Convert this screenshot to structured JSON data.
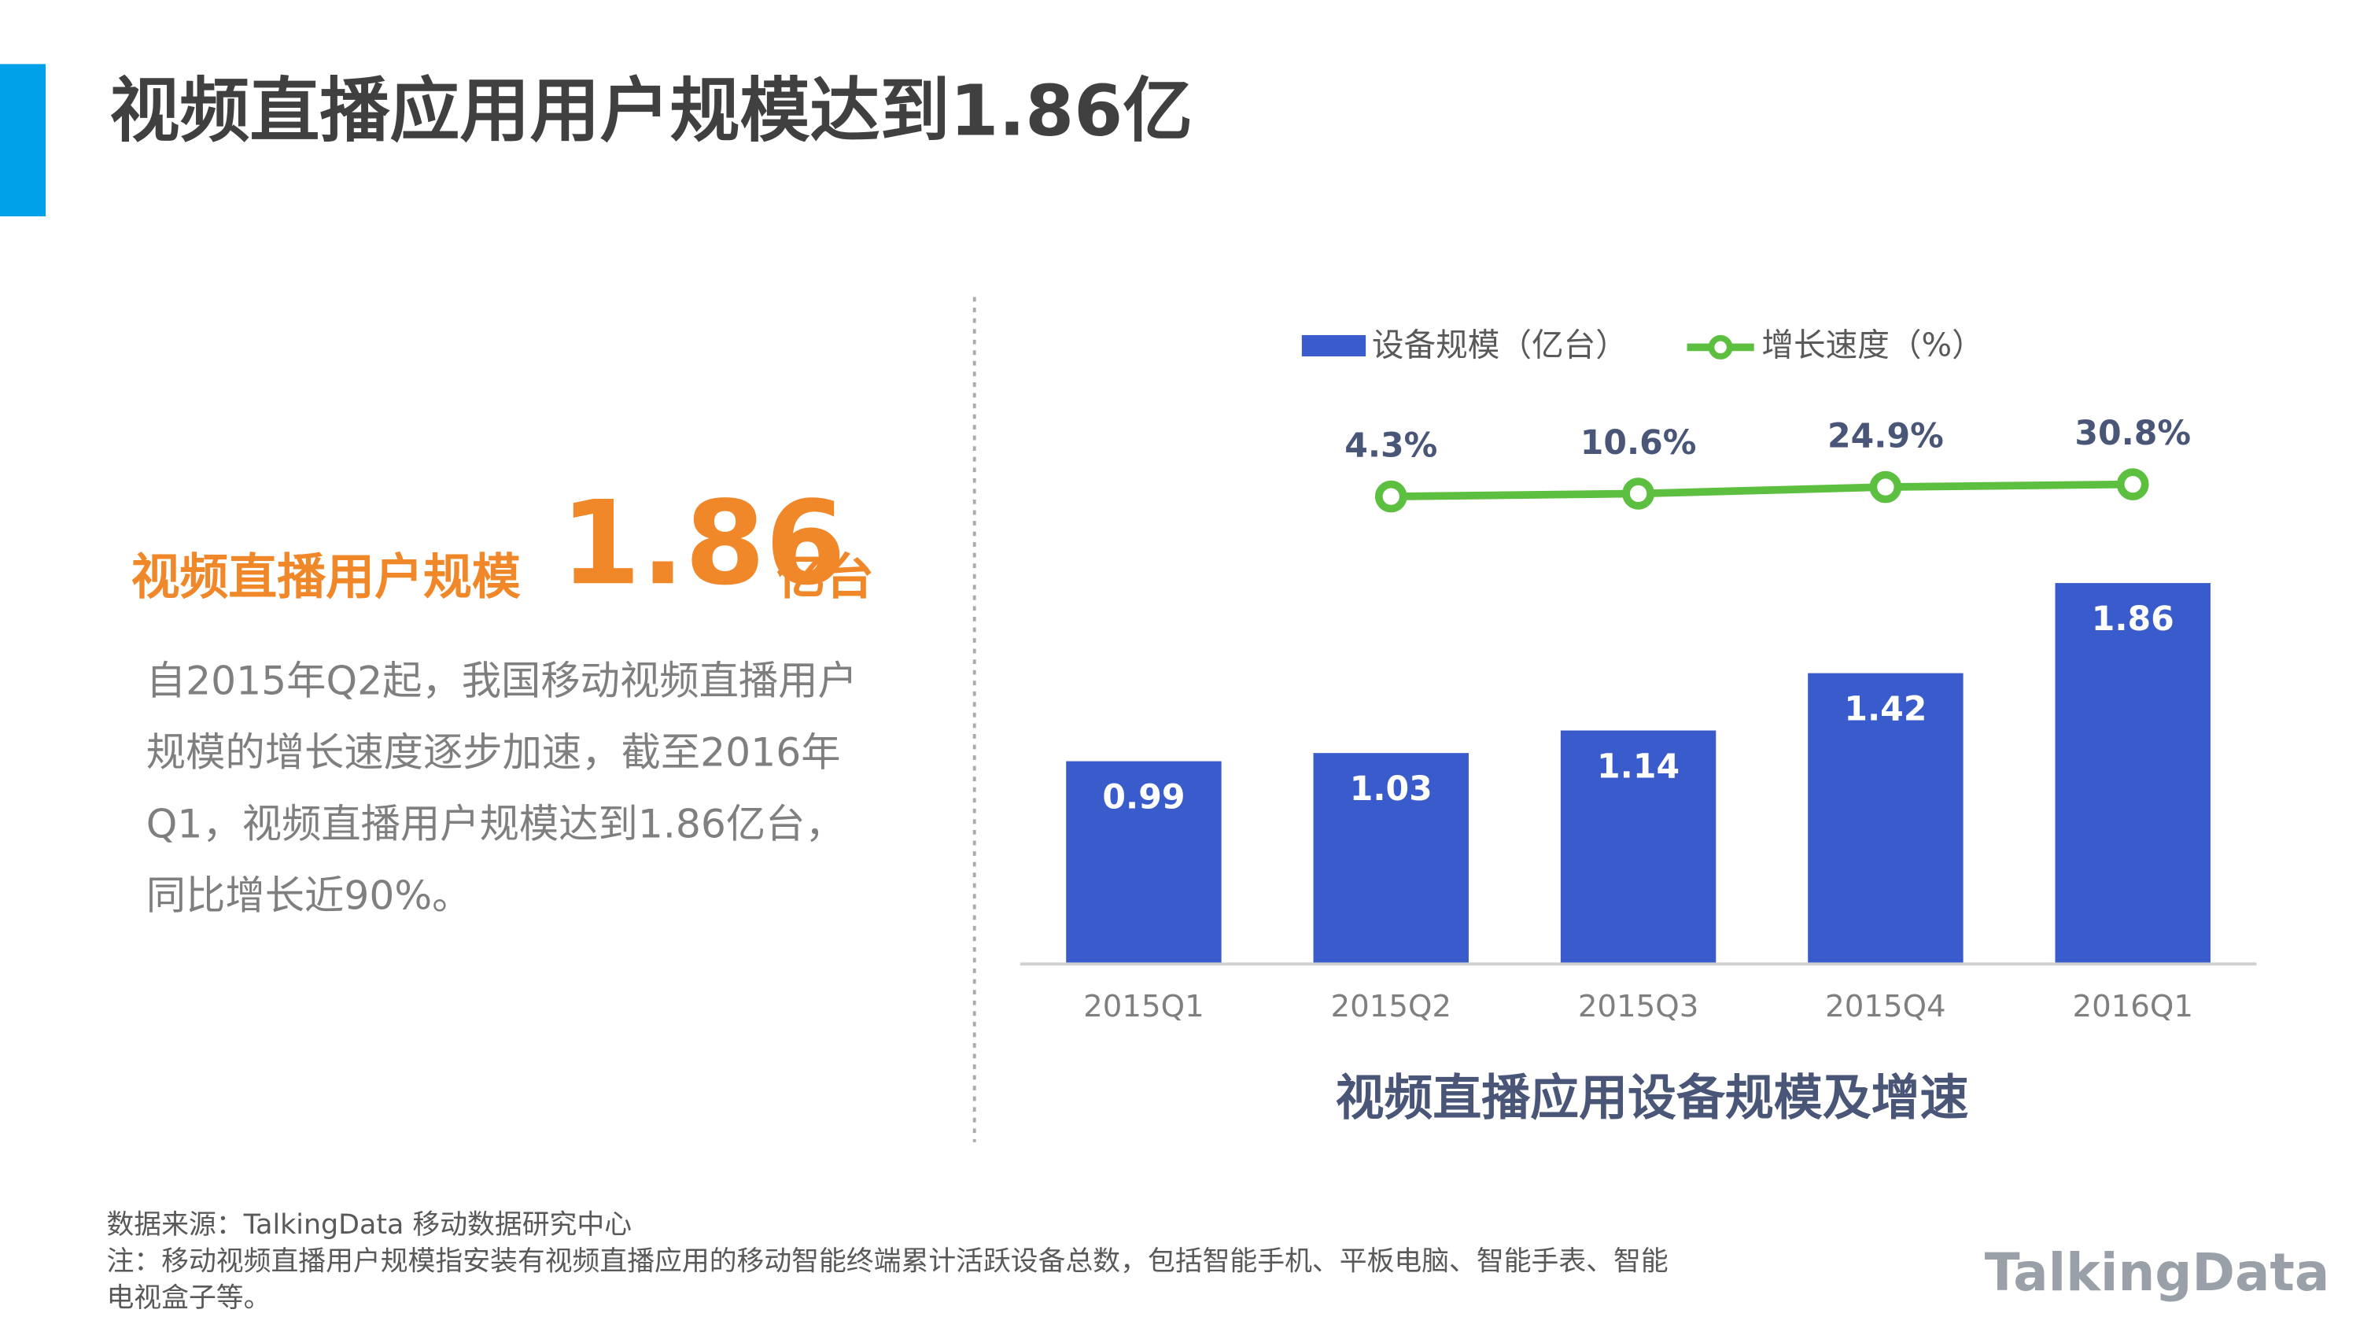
{
  "header": {
    "title": "视频直播应用用户规模达到1.86亿"
  },
  "highlight": {
    "prefix": "视频直播用户规模",
    "number": "1.86",
    "unit": "亿台"
  },
  "description": [
    "自2015年Q2起，我国移动视频直播用户",
    "规模的增长速度逐步加速，截至2016年",
    "Q1，视频直播用户规模达到1.86亿台，",
    "同比增长近90%。"
  ],
  "footnotes": [
    "数据来源：TalkingData 移动数据研究中心",
    "注：移动视频直播用户规模指安装有视频直播应用的移动智能终端累计活跃设备总数，包括智能手机、平板电脑、智能手表、智能",
    "电视盒子等。"
  ],
  "logo": "TalkingData",
  "chart_data": {
    "type": "bar-line",
    "title": "视频直播应用设备规模及增速",
    "categories": [
      "2015Q1",
      "2015Q2",
      "2015Q3",
      "2015Q4",
      "2016Q1"
    ],
    "series": [
      {
        "name": "设备规模（亿台）",
        "color": "#3a5bcc",
        "values": [
          0.99,
          1.03,
          1.14,
          1.42,
          1.86
        ]
      },
      {
        "name": "增长速度（%）",
        "color": "#5dbf3f",
        "axis": "y2",
        "values": [
          null,
          4.3,
          10.6,
          24.9,
          30.8
        ],
        "value_labels": [
          null,
          "4.3%",
          "10.6%",
          "24.9%",
          "30.8%"
        ]
      }
    ],
    "ylim": [
      0,
      2
    ],
    "y2lim": [
      0,
      100
    ],
    "legend": "top"
  }
}
